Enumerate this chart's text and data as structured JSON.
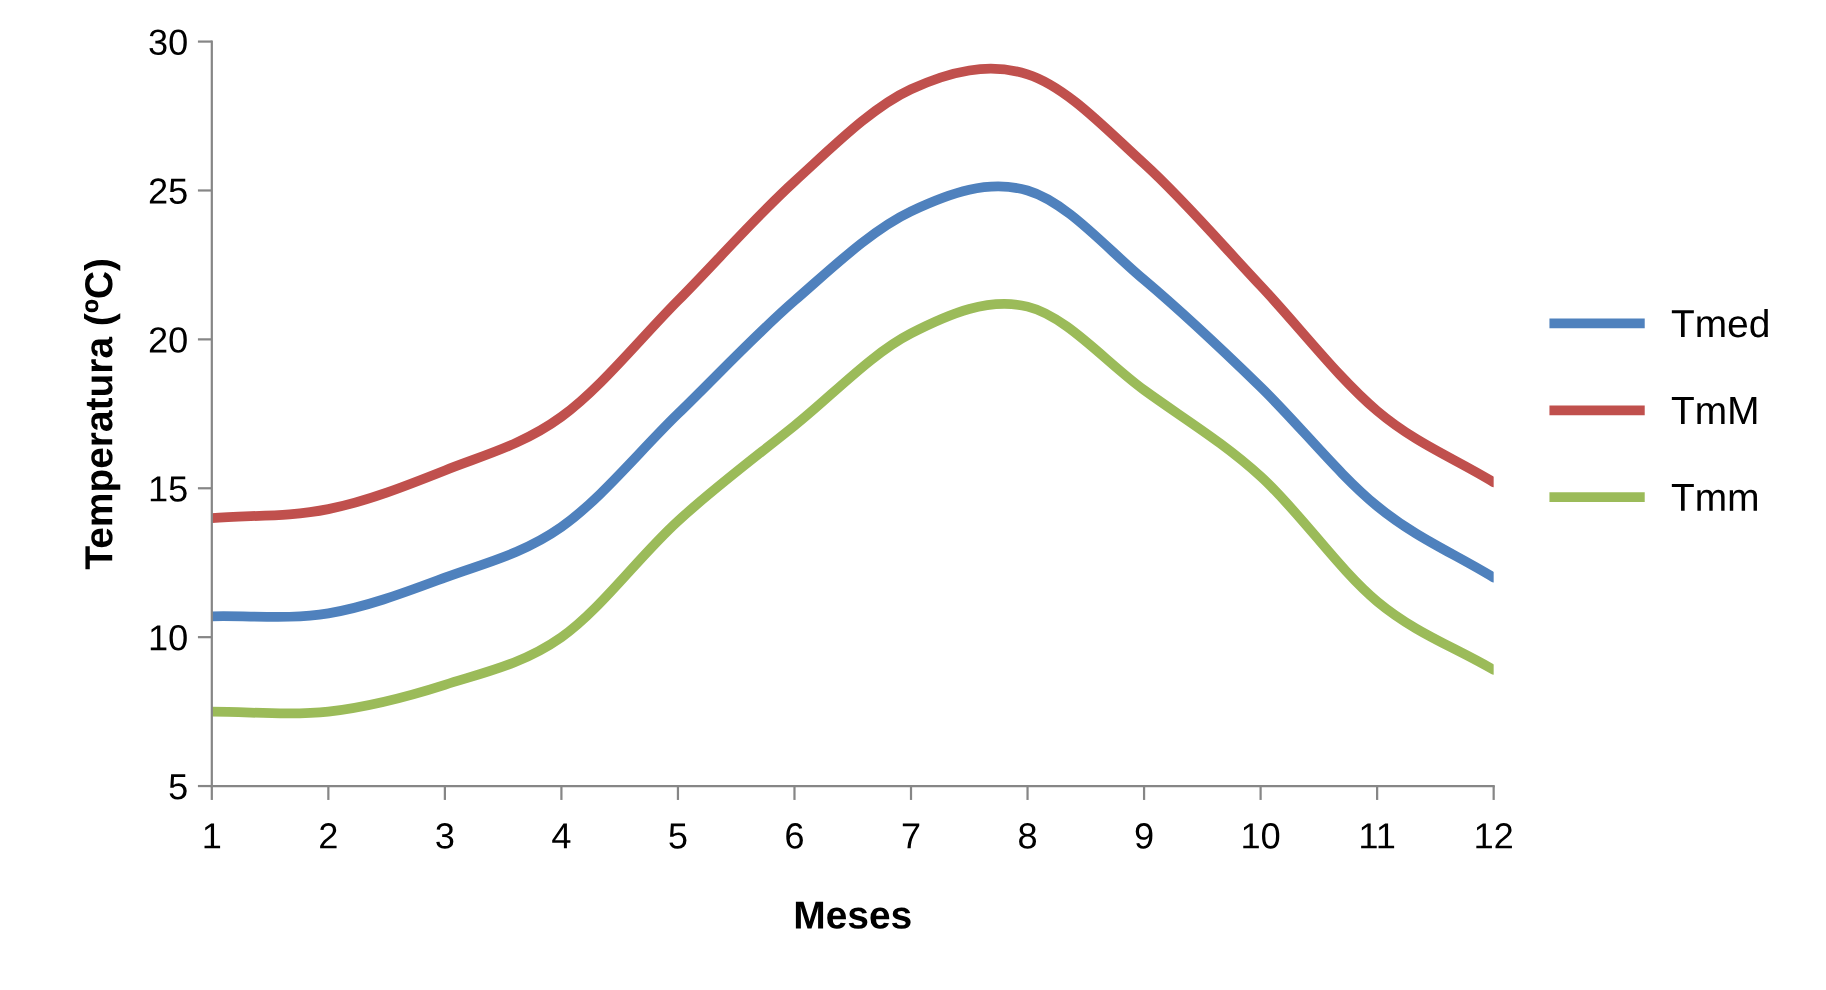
{
  "chart_data": {
    "type": "line",
    "xlabel": "Meses",
    "ylabel": "Temperatura (ºC)",
    "x": [
      1,
      2,
      3,
      4,
      5,
      6,
      7,
      8,
      9,
      10,
      11,
      12
    ],
    "series": [
      {
        "name": "Tmed",
        "color": "#4f81bd",
        "values": [
          10.7,
          10.8,
          12.0,
          13.7,
          17.5,
          21.3,
          24.3,
          25.0,
          22.0,
          18.4,
          14.4,
          12.0
        ]
      },
      {
        "name": "TmM",
        "color": "#c0504d",
        "values": [
          14.0,
          14.3,
          15.6,
          17.4,
          21.3,
          25.3,
          28.4,
          28.9,
          25.9,
          21.8,
          17.6,
          15.2
        ]
      },
      {
        "name": "Tmm",
        "color": "#9bbb59",
        "values": [
          7.5,
          7.5,
          8.4,
          10.0,
          13.9,
          17.1,
          20.2,
          21.1,
          18.3,
          15.4,
          11.2,
          8.9
        ]
      }
    ],
    "xlim": [
      1,
      12
    ],
    "xticks": [
      1,
      2,
      3,
      4,
      5,
      6,
      7,
      8,
      9,
      10,
      11,
      12
    ],
    "ylim": [
      5,
      30
    ],
    "yticks": [
      5,
      10,
      15,
      20,
      25,
      30
    ],
    "grid": false,
    "legend": "right",
    "marker": "none",
    "line_style": "solid"
  }
}
